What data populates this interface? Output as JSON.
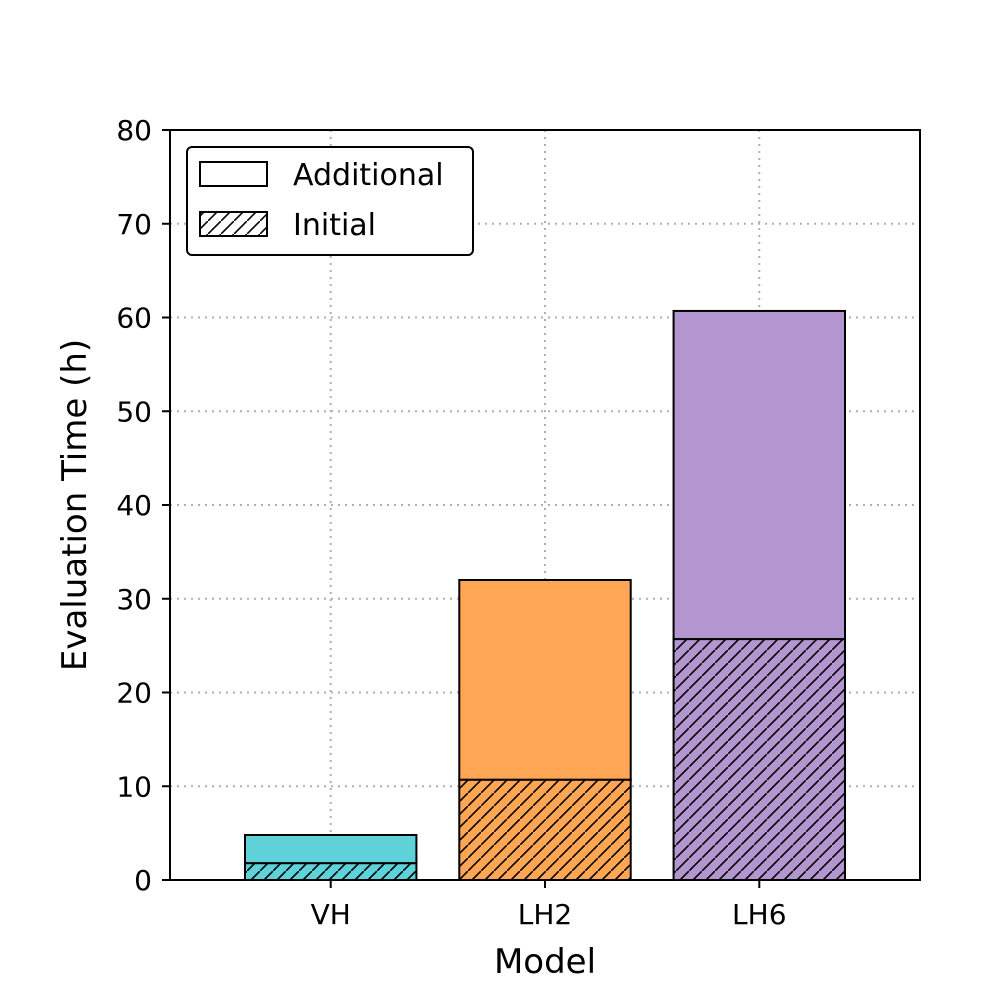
{
  "chart_data": {
    "type": "bar",
    "stacked": true,
    "title": "",
    "xlabel": "Model",
    "ylabel": "Evaluation Time (h)",
    "ylim": [
      0,
      80
    ],
    "yticks": [
      0,
      10,
      20,
      30,
      40,
      50,
      60,
      70,
      80
    ],
    "grid": true,
    "legend_position": "top-left",
    "categories": [
      "VH",
      "LH2",
      "LH6"
    ],
    "colors": [
      "#5ed1d9",
      "#ffa655",
      "#b396d0"
    ],
    "series": [
      {
        "name": "Initial",
        "pattern": "hatched",
        "values": [
          1.8,
          10.7,
          25.7
        ]
      },
      {
        "name": "Additional",
        "pattern": "solid",
        "values": [
          3.0,
          21.3,
          35.0
        ]
      }
    ],
    "legend": [
      {
        "label": "Additional",
        "pattern": "solid"
      },
      {
        "label": "Initial",
        "pattern": "hatched"
      }
    ]
  }
}
